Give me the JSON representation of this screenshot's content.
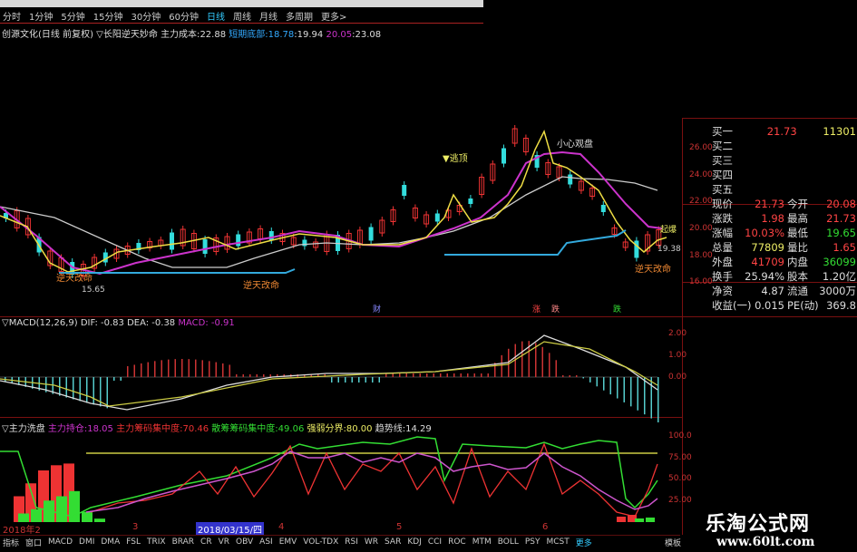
{
  "toolbar": {
    "periods": [
      "分时",
      "1分钟",
      "5分钟",
      "15分钟",
      "30分钟",
      "60分钟",
      "日线",
      "周线",
      "月线",
      "多周期",
      "更多>"
    ],
    "active": "日线"
  },
  "info": {
    "stock": "创源文化(日线 前复权)",
    "indicator": "▽长阳逆天妙命",
    "cost_label": "主力成本:",
    "cost_value": "22.88",
    "short_label": "短期底部:",
    "short_value1": "18.78",
    "short_value2": ":19.94",
    "v3": "20.05",
    "v4": ":23.08"
  },
  "price_axis": [
    "26.00",
    "24.00",
    "22.00",
    "20.00",
    "18.00",
    "16.00"
  ],
  "macd_axis": [
    "2.00",
    "1.00",
    "0.00"
  ],
  "bottom_axis": [
    "100.0",
    "75.00",
    "50.00",
    "25.00"
  ],
  "chart_labels": {
    "escape": "▼逃顶",
    "caution": "小心观盘",
    "reversal1": "逆天改命",
    "reversal2": "逆天改命",
    "reversal3": "逆天改命",
    "low_value": "15.65",
    "right_value": "19.38",
    "buy_label": "起爆",
    "cai": "财",
    "zhang": "涨",
    "die": "跌",
    "die2": "跌"
  },
  "quote": {
    "buy1": {
      "label": "买一",
      "price": "21.73",
      "vol": "11301"
    },
    "buy_levels": [
      "买二",
      "买三",
      "买四",
      "买五"
    ],
    "rows": [
      {
        "k": "现价",
        "v": "21.73",
        "vc": "red",
        "k2": "今开",
        "v2": "20.08",
        "v2c": "red"
      },
      {
        "k": "涨跌",
        "v": "1.98",
        "vc": "red",
        "k2": "最高",
        "v2": "21.73",
        "v2c": "red"
      },
      {
        "k": "涨幅",
        "v": "10.03%",
        "vc": "red",
        "k2": "最低",
        "v2": "19.65",
        "v2c": "green"
      },
      {
        "k": "总量",
        "v": "77809",
        "vc": "yellow",
        "k2": "量比",
        "v2": "1.65",
        "v2c": "red"
      },
      {
        "k": "外盘",
        "v": "41709",
        "vc": "red",
        "k2": "内盘",
        "v2": "36099",
        "v2c": "green"
      },
      {
        "k": "换手",
        "v": "25.94%",
        "vc": "white",
        "k2": "股本",
        "v2": "1.20亿",
        "v2c": "white"
      },
      {
        "k": "净资",
        "v": "4.87",
        "vc": "white",
        "k2": "流通",
        "v2": "3000万",
        "v2c": "white"
      },
      {
        "k": "收益(一)",
        "v": "0.015",
        "vc": "white",
        "k2": "PE(动)",
        "v2": "369.8",
        "v2c": "white"
      }
    ]
  },
  "macd": {
    "name": "▽MACD(12,26,9)",
    "dif": "DIF: -0.83",
    "dea": "DEA: -0.38",
    "macd": "MACD: -0.91"
  },
  "bottom": {
    "name": "▽主力洗盘",
    "hold_label": "主力持仓:",
    "hold_value": "18.05",
    "conc_label": "主力筹码集中度:",
    "conc_value": "70.46",
    "retail_label": "散筹筹码集中度:",
    "retail_value": "49.06",
    "split_label": "强弱分界:",
    "split_value": "80.00",
    "trend_label": "趋势线:",
    "trend_value": "14.29"
  },
  "timeline": [
    "2018年2",
    "3",
    "2018/03/15/四",
    "4",
    "5",
    "6"
  ],
  "tabs": [
    "指标",
    "窗口",
    "MACD",
    "DMI",
    "DMA",
    "FSL",
    "TRIX",
    "BRAR",
    "CR",
    "VR",
    "OBV",
    "ASI",
    "EMV",
    "VOL-TDX",
    "RSI",
    "WR",
    "SAR",
    "KDJ",
    "CCI",
    "ROC",
    "MTM",
    "BOLL",
    "PSY",
    "MCST",
    "更多"
  ],
  "template_label": "模板",
  "watermark": {
    "title": "乐淘公式网",
    "url": "www.60lt.com"
  },
  "colors": {
    "up": "#ff3333",
    "down": "#33dddd",
    "ma5": "#eedd44",
    "ma10": "#cc33cc",
    "ma_long": "#cccccc",
    "support": "#33aadd",
    "grid": "#7a1010"
  }
}
